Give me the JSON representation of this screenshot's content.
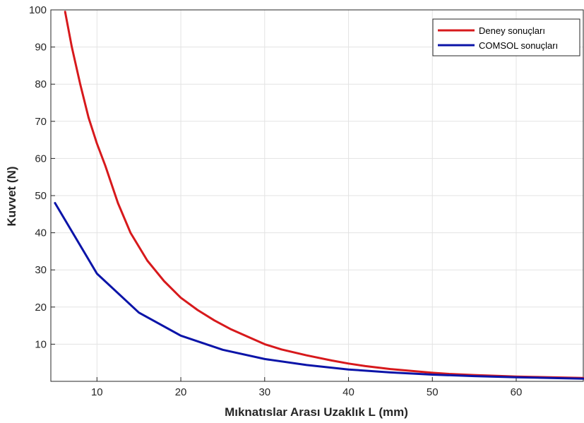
{
  "chart_data": {
    "type": "line",
    "title": "",
    "xlabel": "Mıknatıslar Arası Uzaklık L (mm)",
    "ylabel": "Kuvvet (N)",
    "xlim": [
      4.5,
      68
    ],
    "ylim": [
      0,
      100
    ],
    "x_ticks": [
      10,
      20,
      30,
      40,
      50,
      60
    ],
    "y_ticks": [
      10,
      20,
      30,
      40,
      50,
      60,
      70,
      80,
      90,
      100
    ],
    "grid": true,
    "legend_position": "top-right",
    "series": [
      {
        "name": "Deney sonuçları",
        "color": "#d7191c",
        "x": [
          6.2,
          7,
          8,
          9,
          10,
          11,
          12.5,
          14,
          16,
          18,
          20,
          22,
          24,
          26,
          28,
          30,
          32,
          35,
          38,
          40,
          42,
          45,
          48,
          50,
          52,
          55,
          58,
          60,
          62,
          65,
          68
        ],
        "values": [
          99.5,
          90,
          80,
          71,
          64,
          58,
          48,
          40,
          32.5,
          27,
          22.5,
          19.2,
          16.4,
          14,
          12,
          10,
          8.6,
          7,
          5.6,
          4.8,
          4.1,
          3.3,
          2.7,
          2.3,
          2,
          1.7,
          1.45,
          1.3,
          1.2,
          1.05,
          0.9
        ]
      },
      {
        "name": "COMSOL sonuçları",
        "color": "#0b14a8",
        "x": [
          5,
          10,
          15,
          20,
          25,
          30,
          35,
          40,
          45,
          50,
          55,
          60,
          65,
          68
        ],
        "values": [
          48,
          29,
          18.5,
          12.3,
          8.5,
          6,
          4.4,
          3.2,
          2.4,
          1.8,
          1.4,
          1.1,
          0.85,
          0.7
        ]
      }
    ]
  }
}
